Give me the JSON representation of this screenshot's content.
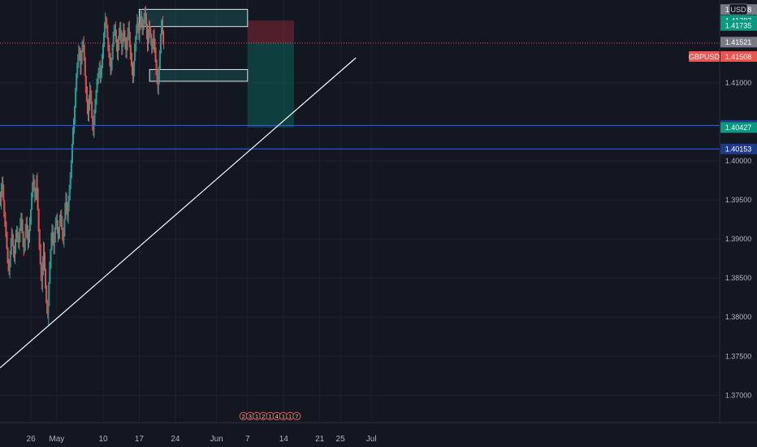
{
  "chart_data": {
    "type": "candlestick",
    "symbol": "GBPUSD",
    "currency": "USD",
    "last_price": "1.41508",
    "price_labels": [
      {
        "value": 1.41938,
        "text": "1.41938",
        "bg": "#787b86"
      },
      {
        "value": 1.41797,
        "text": "1.41797",
        "bg": "#089981"
      },
      {
        "value": 1.41735,
        "text": "1.41735",
        "bg": "#089981"
      },
      {
        "value": 1.41521,
        "text": "1.41521",
        "bg": "#787b86"
      },
      {
        "value": 1.40454,
        "text": "1.40454",
        "bg": "#1e3a8a"
      },
      {
        "value": 1.40427,
        "text": "1.40427",
        "bg": "#089981"
      },
      {
        "value": 1.40153,
        "text": "1.40153",
        "bg": "#1e3a8a"
      }
    ],
    "y_ticks": [
      "1.41000",
      "1.40000",
      "1.39500",
      "1.39000",
      "1.38500",
      "1.38000",
      "1.37500",
      "1.37000"
    ],
    "y_tick_values": [
      1.41,
      1.4,
      1.395,
      1.39,
      1.385,
      1.38,
      1.375,
      1.37
    ],
    "ylim": [
      1.3665,
      1.4206
    ],
    "x_ticks": [
      "26",
      "May",
      "10",
      "17",
      "24",
      "Jun",
      "7",
      "14",
      "21",
      "25",
      "Jul"
    ],
    "x_tick_dates": [
      "2021-04-26",
      "2021-05-01",
      "2021-05-10",
      "2021-05-17",
      "2021-05-24",
      "2021-06-01",
      "2021-06-07",
      "2021-06-14",
      "2021-06-21",
      "2021-06-25",
      "2021-07-01"
    ],
    "horizontal_lines": [
      1.40454,
      1.40153
    ],
    "trendline": {
      "from": [
        "2021-04-20",
        1.3735
      ],
      "to": [
        "2021-06-28",
        1.4132
      ]
    },
    "rectangles": [
      {
        "from": [
          "2021-05-17",
          1.4172
        ],
        "to": [
          "2021-06-07",
          1.4194
        ]
      },
      {
        "from": [
          "2021-05-19",
          1.4102
        ],
        "to": [
          "2021-06-07",
          1.4117
        ]
      }
    ],
    "position_short": {
      "start": "2021-06-07",
      "end": "2021-06-16",
      "entry": 1.41508,
      "stop": 1.41797,
      "target": 1.40427
    },
    "event_badges": [
      "2",
      "3",
      "1",
      "2",
      "1",
      "4",
      "1",
      "1",
      "7"
    ],
    "colors": {
      "up": "#26a69a",
      "down": "#ef5350",
      "background": "#131722",
      "hline": "#2962ff"
    },
    "candles": {
      "start": "2021-04-20",
      "bars_per_day": 6,
      "base": 1.3955,
      "closes": [
        1.3948,
        1.3962,
        1.3971,
        1.3958,
        1.394,
        1.3925,
        1.3912,
        1.3898,
        1.388,
        1.3868,
        1.386,
        1.3875,
        1.389,
        1.3905,
        1.3898,
        1.3885,
        1.3878,
        1.389,
        1.3903,
        1.391,
        1.3902,
        1.3895,
        1.3905,
        1.3918,
        1.3926,
        1.3915,
        1.39,
        1.3888,
        1.3895,
        1.3909,
        1.392,
        1.3908,
        1.3896,
        1.3905,
        1.3918,
        1.393,
        1.3948,
        1.3962,
        1.3975,
        1.3968,
        1.3955,
        1.396,
        1.3972,
        1.395,
        1.3925,
        1.39,
        1.388,
        1.386,
        1.3845,
        1.3865,
        1.3885,
        1.387,
        1.385,
        1.383,
        1.3815,
        1.3805,
        1.383,
        1.3855,
        1.3875,
        1.3895,
        1.391,
        1.39,
        1.389,
        1.3905,
        1.3918,
        1.3925,
        1.3915,
        1.3905,
        1.391,
        1.3922,
        1.393,
        1.392,
        1.3908,
        1.39,
        1.3915,
        1.3935,
        1.395,
        1.394,
        1.393,
        1.3945,
        1.396,
        1.3975,
        1.399,
        1.401,
        1.403,
        1.4045,
        1.406,
        1.408,
        1.41,
        1.4115,
        1.4128,
        1.414,
        1.4135,
        1.412,
        1.4132,
        1.4145,
        1.415,
        1.4138,
        1.412,
        1.41,
        1.4085,
        1.407,
        1.406,
        1.4075,
        1.409,
        1.408,
        1.4065,
        1.405,
        1.404,
        1.4055,
        1.407,
        1.4082,
        1.4095,
        1.4105,
        1.4112,
        1.412,
        1.4108,
        1.4115,
        1.4128,
        1.414,
        1.4155,
        1.4168,
        1.418,
        1.4175,
        1.4165,
        1.415,
        1.414,
        1.413,
        1.4118,
        1.4125,
        1.414,
        1.4155,
        1.4165,
        1.417,
        1.416,
        1.4148,
        1.4138,
        1.415,
        1.4162,
        1.417,
        1.4158,
        1.4145,
        1.4155,
        1.4168,
        1.416,
        1.415,
        1.414,
        1.415,
        1.4162,
        1.417,
        1.4155,
        1.414,
        1.413,
        1.4118,
        1.4108,
        1.412,
        1.4138,
        1.415,
        1.4165,
        1.4178,
        1.417,
        1.4162,
        1.4175,
        1.4185,
        1.4178,
        1.4168,
        1.4175,
        1.4182,
        1.419,
        1.418,
        1.4165,
        1.415,
        1.416,
        1.4172,
        1.4165,
        1.4155,
        1.4145,
        1.415,
        1.416,
        1.4148,
        1.4135,
        1.412,
        1.4108,
        1.4095,
        1.411,
        1.413,
        1.415,
        1.4168,
        1.4175,
        1.416,
        1.415
      ]
    }
  }
}
